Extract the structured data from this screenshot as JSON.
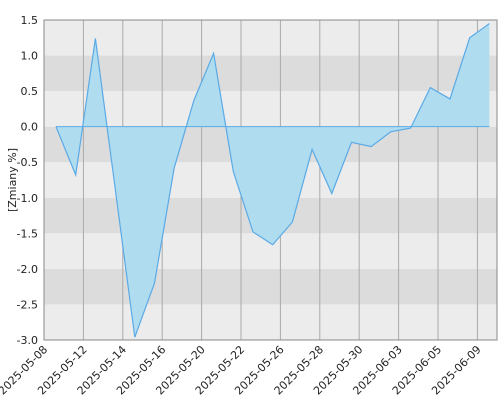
{
  "chart_data": {
    "type": "area",
    "y_label": "[Zmiany %]",
    "xticks": [
      "2025-05-08",
      "2025-05-12",
      "2025-05-14",
      "2025-05-16",
      "2025-05-20",
      "2025-05-22",
      "2025-05-26",
      "2025-05-28",
      "2025-05-30",
      "2025-06-03",
      "2025-06-05",
      "2025-06-09"
    ],
    "values": [
      0,
      -0.68,
      1.24,
      -0.86,
      -2.96,
      -2.2,
      -0.58,
      0.37,
      1.03,
      -0.63,
      -1.48,
      -1.66,
      -1.34,
      -0.32,
      -0.94,
      -0.22,
      -0.28,
      -0.07,
      -0.02,
      0.55,
      0.39,
      1.25,
      1.45
    ],
    "color": "#5aaae6",
    "fill": "#b0dcf0",
    "ylim": [
      -3.0,
      1.5
    ],
    "yticks": [
      {
        "value": -3.0,
        "label": "-3.0"
      },
      {
        "value": -2.5,
        "label": "-2.5"
      },
      {
        "value": -2.0,
        "label": "-2.0"
      },
      {
        "value": -1.5,
        "label": "-1.5"
      },
      {
        "value": -1.0,
        "label": "-1.0"
      },
      {
        "value": -0.5,
        "label": "-0.5"
      },
      {
        "value": 0.0,
        "label": "0.0"
      },
      {
        "value": 0.5,
        "label": "0.5"
      },
      {
        "value": 1.0,
        "label": "1.0"
      },
      {
        "value": 1.5,
        "label": "1.5"
      }
    ],
    "grid": true
  }
}
